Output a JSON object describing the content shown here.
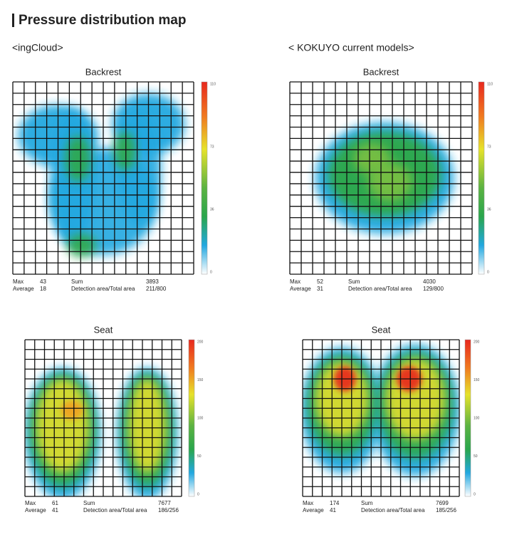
{
  "header": {
    "title": "Pressure distribution map"
  },
  "columns": [
    "<ingCloud>",
    "< KOKUYO current models>"
  ],
  "panels": [
    {
      "title": "Backrest",
      "scale_ticks": [
        "110",
        "73",
        "36",
        "0"
      ],
      "stats": [
        {
          "label": "Max",
          "value": "43"
        },
        {
          "label": "Sum",
          "value": "3893"
        },
        {
          "label": "Average",
          "value": "18"
        },
        {
          "label": "Detection area/Total area",
          "value": "211/800"
        }
      ]
    },
    {
      "title": "Backrest",
      "scale_ticks": [
        "110",
        "73",
        "36",
        "0"
      ],
      "stats": [
        {
          "label": "Max",
          "value": "52"
        },
        {
          "label": "Sum",
          "value": "4030"
        },
        {
          "label": "Average",
          "value": "31"
        },
        {
          "label": "Detection area/Total area",
          "value": "129/800"
        }
      ]
    },
    {
      "title": "Seat",
      "scale_ticks": [
        "200",
        "150",
        "100",
        "50",
        "0"
      ],
      "stats": [
        {
          "label": "Max",
          "value": "61"
        },
        {
          "label": "Sum",
          "value": "7677"
        },
        {
          "label": "Average",
          "value": "41"
        },
        {
          "label": "Detection area/Total area",
          "value": "186/256"
        }
      ]
    },
    {
      "title": "Seat",
      "scale_ticks": [
        "200",
        "150",
        "100",
        "50",
        "0"
      ],
      "stats": [
        {
          "label": "Max",
          "value": "174"
        },
        {
          "label": "Sum",
          "value": "7699"
        },
        {
          "label": "Average",
          "value": "41"
        },
        {
          "label": "Detection area/Total area",
          "value": "185/256"
        }
      ]
    }
  ]
}
